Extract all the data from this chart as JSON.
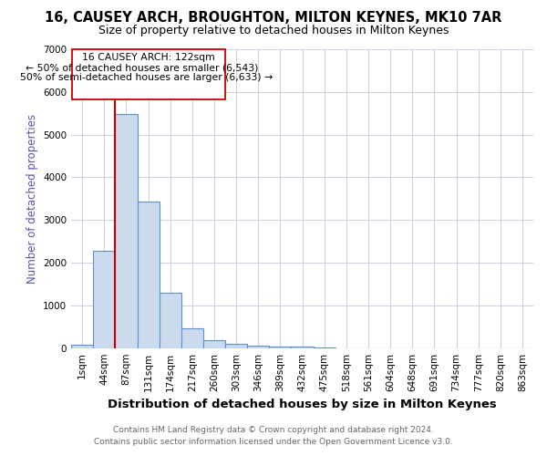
{
  "title": "16, CAUSEY ARCH, BROUGHTON, MILTON KEYNES, MK10 7AR",
  "subtitle": "Size of property relative to detached houses in Milton Keynes",
  "xlabel": "Distribution of detached houses by size in Milton Keynes",
  "ylabel": "Number of detached properties",
  "footer_line1": "Contains HM Land Registry data © Crown copyright and database right 2024.",
  "footer_line2": "Contains public sector information licensed under the Open Government Licence v3.0.",
  "categories": [
    "1sqm",
    "44sqm",
    "87sqm",
    "131sqm",
    "174sqm",
    "217sqm",
    "260sqm",
    "303sqm",
    "346sqm",
    "389sqm",
    "432sqm",
    "475sqm",
    "518sqm",
    "561sqm",
    "604sqm",
    "648sqm",
    "691sqm",
    "734sqm",
    "777sqm",
    "820sqm",
    "863sqm"
  ],
  "values": [
    80,
    2280,
    5480,
    3440,
    1300,
    460,
    185,
    95,
    65,
    45,
    35,
    5,
    3,
    2,
    1,
    1,
    0,
    0,
    0,
    0,
    0
  ],
  "bar_color": "#ccdaee",
  "bar_edge_color": "#5b8fd4",
  "bar_edge_width": 0.8,
  "ylim": [
    0,
    7000
  ],
  "yticks": [
    0,
    1000,
    2000,
    3000,
    4000,
    5000,
    6000,
    7000
  ],
  "red_line_color": "#cc0000",
  "annotation_box_text_line1": "16 CAUSEY ARCH: 122sqm",
  "annotation_box_text_line2": "← 50% of detached houses are smaller (6,543)",
  "annotation_box_text_line3": "50% of semi-detached houses are larger (6,633) →",
  "annotation_box_edge_color": "#cc0000",
  "annotation_box_facecolor": "#ffffff",
  "background_color": "#ffffff",
  "grid_color": "#c8d0de",
  "title_fontsize": 10.5,
  "subtitle_fontsize": 9,
  "ylabel_fontsize": 8.5,
  "ylabel_color": "#5555aa",
  "xlabel_fontsize": 9.5,
  "tick_fontsize": 7.5,
  "footer_fontsize": 6.5,
  "footer_color": "#666666"
}
